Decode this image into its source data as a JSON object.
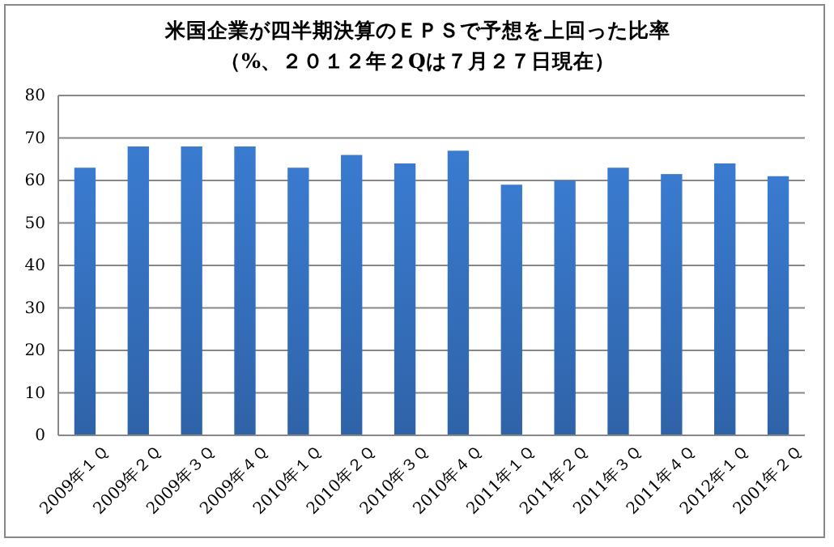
{
  "chart_data": {
    "type": "bar",
    "title": "米国企業が四半期決算のＥＰＳで予想を上回った比率",
    "subtitle": "（%、２０１２年２Qは７月２７日現在）",
    "categories": [
      "2009年１Ｑ",
      "2009年２Ｑ",
      "2009年３Ｑ",
      "2009年４Ｑ",
      "2010年１Ｑ",
      "2010年２Ｑ",
      "2010年３Ｑ",
      "2010年４Ｑ",
      "2011年１Ｑ",
      "2011年２Ｑ",
      "2011年３Ｑ",
      "2011年４Ｑ",
      "2012年１Ｑ",
      "2001年２Ｑ"
    ],
    "values": [
      63,
      68,
      68,
      68,
      63,
      66,
      64,
      67,
      59,
      60,
      63,
      61.5,
      64,
      61
    ],
    "color": "#3a7bd0",
    "ylim": [
      0,
      80
    ],
    "yticks": [
      0,
      10,
      20,
      30,
      40,
      50,
      60,
      70,
      80
    ],
    "grid": "y"
  }
}
